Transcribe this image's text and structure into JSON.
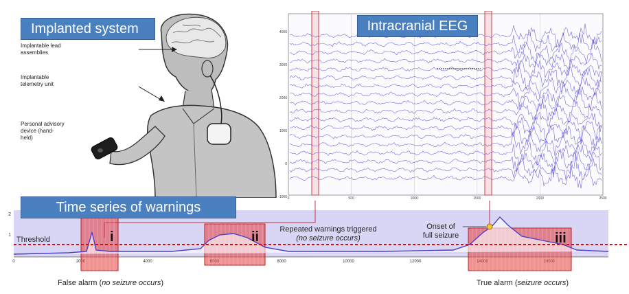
{
  "implanted": {
    "title": "Implanted system",
    "labels": [
      {
        "lines": [
          "Implantable lead",
          "assemblies"
        ]
      },
      {
        "lines": [
          "Implantable",
          "telemetry unit"
        ]
      },
      {
        "lines": [
          "Personal advisory",
          "device (hand-",
          "held)"
        ]
      }
    ]
  },
  "eeg": {
    "title": "Intracranial EEG",
    "y_ticks": [
      "4000",
      "3000",
      "2000",
      "1000",
      "0",
      "-1000"
    ],
    "x_ticks": [
      "0",
      "500",
      "1000",
      "1500",
      "2000",
      "2500"
    ],
    "colors": {
      "trace": "#5a4fd6",
      "grid": "#c8c8d8",
      "marker": "#d04050"
    }
  },
  "warnings": {
    "title": "Time series of warnings",
    "threshold_label": "Threshold",
    "y_ticks": [
      "2",
      "1"
    ],
    "x_ticks": [
      "0",
      "2000",
      "4000",
      "6000",
      "8000",
      "10000",
      "12000",
      "14000",
      "16000"
    ],
    "repeated": {
      "main": "Repeated warnings triggered",
      "sub": "(no seizure occurs)"
    },
    "onset": {
      "line1": "Onset of",
      "line2": "full seizure"
    },
    "false_alarm": {
      "main": "False alarm (",
      "italic": "no seizure occurs",
      "end": ")"
    },
    "true_alarm": {
      "main": "True alarm (",
      "italic": "seizure occurs",
      "end": ")"
    },
    "regions": [
      "i",
      "ii",
      "iii"
    ],
    "colors": {
      "threshold": "#cc1111",
      "curve": "#4a3fc8",
      "band": "#d9d6f5",
      "highlight": "#e23a3a"
    }
  }
}
